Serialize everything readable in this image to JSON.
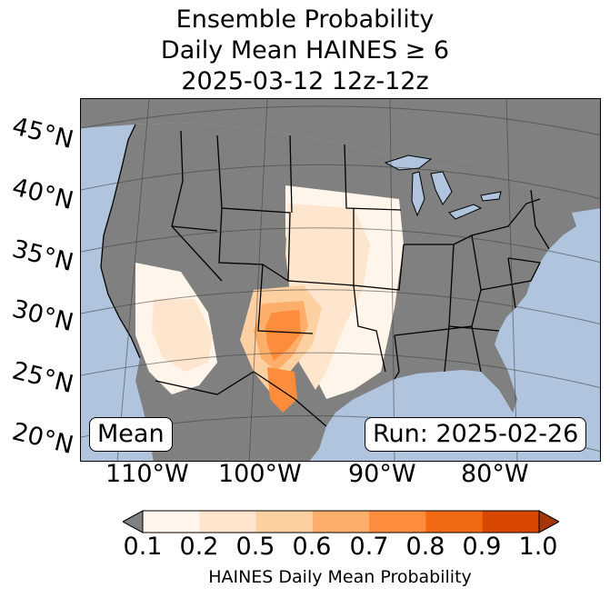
{
  "title": {
    "line1": "Ensemble Probability",
    "line2": "Daily Mean HAINES ≥ 6",
    "line3": "2025-03-12 12z-12z"
  },
  "map": {
    "lat_labels": [
      "45°N",
      "40°N",
      "35°N",
      "30°N",
      "25°N",
      "20°N"
    ],
    "lon_labels": [
      "110°W",
      "100°W",
      "90°W",
      "80°W"
    ],
    "mean_label": "Mean",
    "run_label": "Run: 2025-02-26",
    "colors": {
      "ocean": "#b0c4de",
      "land_masked": "#808080",
      "lake": "#b0c4de"
    }
  },
  "colorbar": {
    "label": "HAINES Daily Mean Probability",
    "ticks": [
      "0.1",
      "0.2",
      "0.5",
      "0.6",
      "0.7",
      "0.8",
      "0.9",
      "1.0"
    ],
    "colors": [
      "#fff5eb",
      "#fee6ce",
      "#fdd0a2",
      "#fdae6b",
      "#fd8d3c",
      "#f16913",
      "#d94801"
    ],
    "under_color": "#808080",
    "over_color": "#a63603"
  }
}
